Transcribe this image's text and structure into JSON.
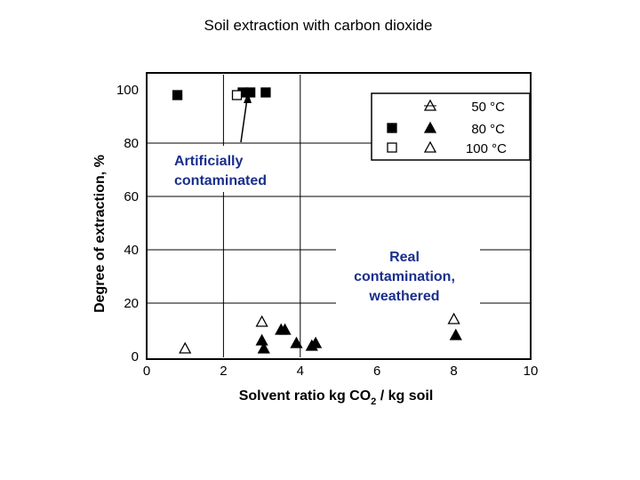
{
  "chart_data": {
    "type": "scatter",
    "title": "Soil extraction with carbon dioxide",
    "xlabel": "Solvent ratio kg CO2 / kg soil",
    "xlabel_parts": {
      "pre": "Solvent ratio kg CO",
      "sub": "2",
      "post": " / kg soil"
    },
    "ylabel": "Degree of extraction, %",
    "xlim": [
      0,
      10
    ],
    "ylim": [
      0,
      100
    ],
    "x_ticks": [
      "0",
      "2",
      "4",
      "6",
      "8",
      "10"
    ],
    "y_ticks": [
      "0",
      "20",
      "40",
      "60",
      "80",
      "100"
    ],
    "grid": true,
    "legend": {
      "placement": "top-right",
      "labels": [
        "50 °C",
        "80 °C",
        "100 °C"
      ]
    },
    "series": [
      {
        "name": "50 °C",
        "marker": "triangle-open",
        "x": [
          1.0,
          3.0,
          8.0
        ],
        "y": [
          3,
          13,
          14
        ]
      },
      {
        "name": "80 °C",
        "marker": "triangle-filled",
        "x": [
          3.0,
          3.05,
          3.5,
          3.6,
          3.9,
          4.3,
          4.4,
          8.05
        ],
        "y": [
          6,
          3,
          10,
          10,
          5,
          4,
          5,
          8
        ]
      },
      {
        "name": "80 °C",
        "marker": "square-filled",
        "x": [
          0.8,
          2.5,
          2.7,
          3.1
        ],
        "y": [
          98,
          99,
          99,
          99
        ]
      },
      {
        "name": "100 °C",
        "marker": "square-open",
        "x": [
          2.35
        ],
        "y": [
          98
        ]
      }
    ],
    "annotations": [
      {
        "text_lines": [
          "Artificially",
          "contaminated"
        ]
      },
      {
        "text_lines": [
          "Real",
          "contamination,",
          "weathered"
        ]
      }
    ]
  }
}
